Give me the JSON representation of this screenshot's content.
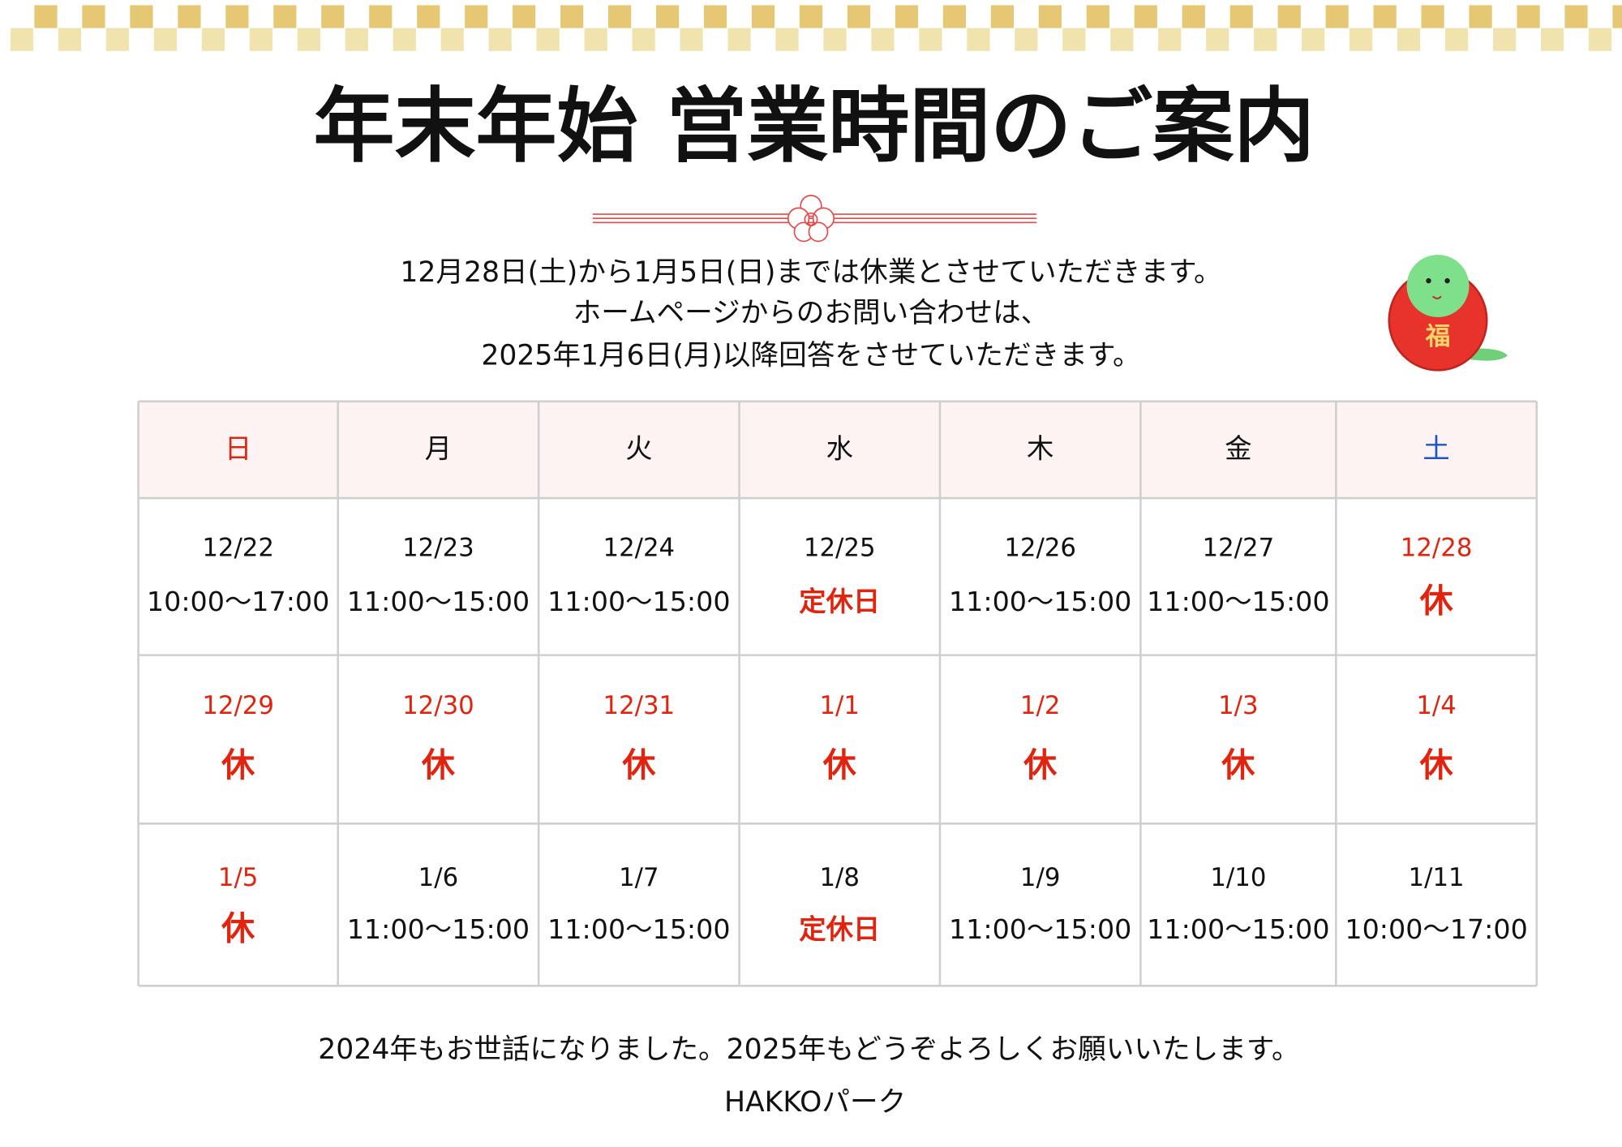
{
  "header": {
    "title": "年末年始 営業時間のご案内"
  },
  "notice": [
    "12月28日(土)から1月5日(日)までは休業とさせていただきます。",
    "ホームページからのお問い合わせは、",
    "2025年1月6日(月)以降回答をさせていただきます。"
  ],
  "daruma": {
    "label": "福"
  },
  "table": {
    "days": [
      "日",
      "月",
      "火",
      "水",
      "木",
      "金",
      "土"
    ],
    "day_colors": [
      "#e0240f",
      "#111111",
      "#111111",
      "#111111",
      "#111111",
      "#111111",
      "#1a56c4"
    ],
    "rows": [
      [
        {
          "date": "12/22",
          "status": "10:00〜17:00"
        },
        {
          "date": "12/23",
          "status": "11:00〜15:00"
        },
        {
          "date": "12/24",
          "status": "11:00〜15:00"
        },
        {
          "date": "12/25",
          "status": "定休日",
          "status_color": "#e0240f"
        },
        {
          "date": "12/26",
          "status": "11:00〜15:00"
        },
        {
          "date": "12/27",
          "status": "11:00〜15:00"
        },
        {
          "date": "12/28",
          "status": "休",
          "date_color": "#e0240f",
          "status_color": "#e0240f"
        }
      ],
      [
        {
          "date": "12/29",
          "status": "休",
          "date_color": "#e0240f",
          "status_color": "#e0240f"
        },
        {
          "date": "12/30",
          "status": "休",
          "date_color": "#e0240f",
          "status_color": "#e0240f"
        },
        {
          "date": "12/31",
          "status": "休",
          "date_color": "#e0240f",
          "status_color": "#e0240f"
        },
        {
          "date": "1/1",
          "status": "休",
          "date_color": "#e0240f",
          "status_color": "#e0240f"
        },
        {
          "date": "1/2",
          "status": "休",
          "date_color": "#e0240f",
          "status_color": "#e0240f"
        },
        {
          "date": "1/3",
          "status": "休",
          "date_color": "#e0240f",
          "status_color": "#e0240f"
        },
        {
          "date": "1/4",
          "status": "休",
          "date_color": "#e0240f",
          "status_color": "#e0240f"
        }
      ],
      [
        {
          "date": "1/5",
          "status": "休",
          "date_color": "#e0240f",
          "status_color": "#e0240f"
        },
        {
          "date": "1/6",
          "status": "11:00〜15:00"
        },
        {
          "date": "1/7",
          "status": "11:00〜15:00"
        },
        {
          "date": "1/8",
          "status": "定休日",
          "status_color": "#e0240f"
        },
        {
          "date": "1/9",
          "status": "11:00〜15:00"
        },
        {
          "date": "1/10",
          "status": "11:00〜15:00"
        },
        {
          "date": "1/11",
          "status": "10:00〜17:00"
        }
      ]
    ]
  },
  "footer": {
    "message": "2024年もお世話になりました。2025年もどうぞよろしくお願いいたします。",
    "signature": "HAKKOパーク"
  }
}
